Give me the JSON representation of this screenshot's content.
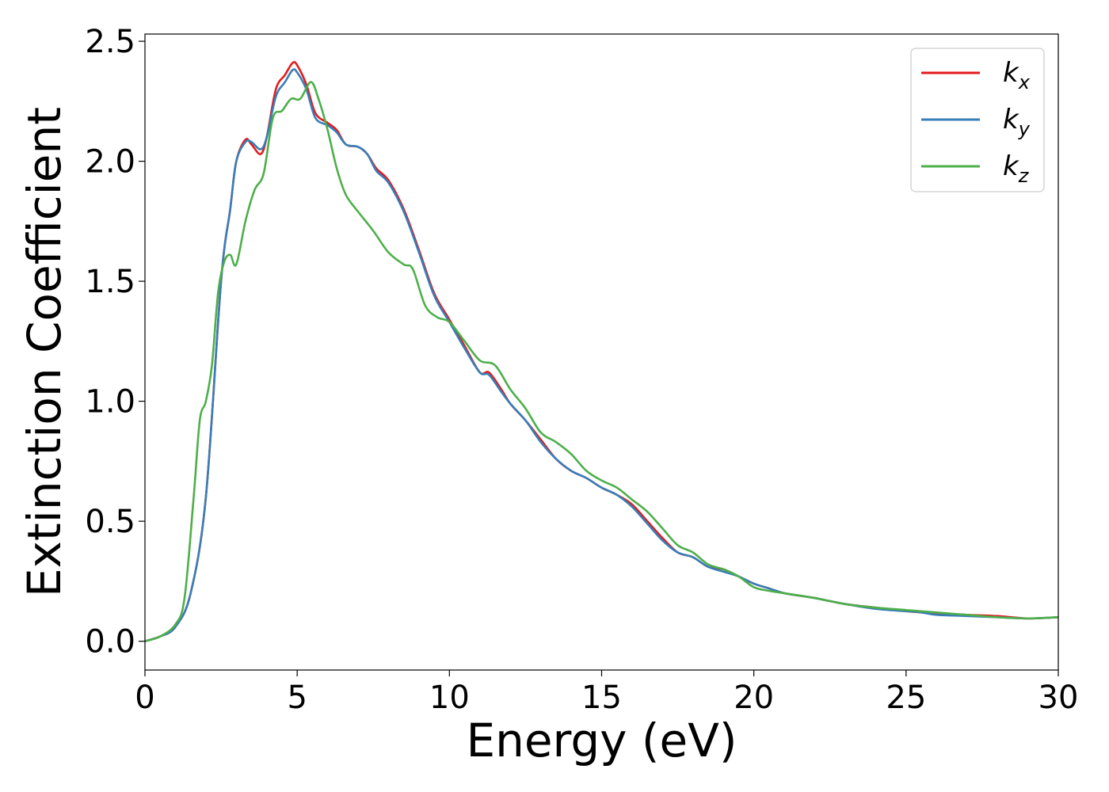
{
  "chart_data": {
    "type": "line",
    "xlabel": "Energy (eV)",
    "ylabel": "Extinction Coefficient",
    "xlim": [
      0,
      30
    ],
    "ylim": [
      -0.12,
      2.53
    ],
    "xticks": [
      0,
      5,
      10,
      15,
      20,
      25,
      30
    ],
    "xtick_labels": [
      "0",
      "5",
      "10",
      "15",
      "20",
      "25",
      "30"
    ],
    "yticks": [
      0.0,
      0.5,
      1.0,
      1.5,
      2.0,
      2.5
    ],
    "ytick_labels": [
      "0.0",
      "0.5",
      "1.0",
      "1.5",
      "2.0",
      "2.5"
    ],
    "grid": false,
    "legend_position": "top-right",
    "series": [
      {
        "name": "k",
        "subscript": "x",
        "color": "#e41a1c",
        "points": [
          [
            0,
            0.0
          ],
          [
            0.5,
            0.02
          ],
          [
            1.0,
            0.06
          ],
          [
            1.5,
            0.2
          ],
          [
            2.0,
            0.6
          ],
          [
            2.5,
            1.5
          ],
          [
            2.8,
            1.8
          ],
          [
            3.0,
            2.0
          ],
          [
            3.3,
            2.09
          ],
          [
            3.5,
            2.07
          ],
          [
            3.8,
            2.03
          ],
          [
            4.0,
            2.1
          ],
          [
            4.3,
            2.3
          ],
          [
            4.6,
            2.36
          ],
          [
            4.85,
            2.41
          ],
          [
            5.0,
            2.4
          ],
          [
            5.3,
            2.32
          ],
          [
            5.6,
            2.2
          ],
          [
            6.0,
            2.16
          ],
          [
            6.3,
            2.13
          ],
          [
            6.6,
            2.07
          ],
          [
            7.0,
            2.06
          ],
          [
            7.3,
            2.03
          ],
          [
            7.6,
            1.97
          ],
          [
            8.0,
            1.92
          ],
          [
            8.5,
            1.8
          ],
          [
            9.0,
            1.63
          ],
          [
            9.5,
            1.45
          ],
          [
            10.0,
            1.34
          ],
          [
            10.5,
            1.23
          ],
          [
            11.0,
            1.12
          ],
          [
            11.3,
            1.12
          ],
          [
            11.7,
            1.05
          ],
          [
            12.0,
            0.99
          ],
          [
            12.5,
            0.92
          ],
          [
            13.0,
            0.84
          ],
          [
            13.5,
            0.76
          ],
          [
            14.0,
            0.71
          ],
          [
            14.5,
            0.68
          ],
          [
            15.0,
            0.64
          ],
          [
            15.5,
            0.61
          ],
          [
            16.0,
            0.57
          ],
          [
            16.5,
            0.5
          ],
          [
            17.0,
            0.43
          ],
          [
            17.5,
            0.37
          ],
          [
            18.0,
            0.35
          ],
          [
            18.5,
            0.31
          ],
          [
            19.0,
            0.3
          ],
          [
            19.5,
            0.27
          ],
          [
            20.0,
            0.24
          ],
          [
            20.5,
            0.22
          ],
          [
            21.0,
            0.2
          ],
          [
            21.5,
            0.19
          ],
          [
            22.0,
            0.18
          ],
          [
            23.0,
            0.155
          ],
          [
            24.0,
            0.14
          ],
          [
            25.0,
            0.125
          ],
          [
            25.5,
            0.12
          ],
          [
            26.0,
            0.115
          ],
          [
            27.0,
            0.11
          ],
          [
            28.0,
            0.105
          ],
          [
            29.0,
            0.095
          ],
          [
            30.0,
            0.1
          ]
        ]
      },
      {
        "name": "k",
        "subscript": "y",
        "color": "#377eb8",
        "points": [
          [
            0,
            0.0
          ],
          [
            0.5,
            0.02
          ],
          [
            1.0,
            0.06
          ],
          [
            1.5,
            0.2
          ],
          [
            2.0,
            0.6
          ],
          [
            2.5,
            1.5
          ],
          [
            2.8,
            1.8
          ],
          [
            3.0,
            2.0
          ],
          [
            3.3,
            2.08
          ],
          [
            3.5,
            2.08
          ],
          [
            3.8,
            2.05
          ],
          [
            4.0,
            2.1
          ],
          [
            4.3,
            2.27
          ],
          [
            4.6,
            2.33
          ],
          [
            4.85,
            2.38
          ],
          [
            5.0,
            2.37
          ],
          [
            5.3,
            2.3
          ],
          [
            5.6,
            2.18
          ],
          [
            6.0,
            2.15
          ],
          [
            6.3,
            2.12
          ],
          [
            6.6,
            2.07
          ],
          [
            7.0,
            2.06
          ],
          [
            7.3,
            2.03
          ],
          [
            7.6,
            1.96
          ],
          [
            8.0,
            1.91
          ],
          [
            8.5,
            1.79
          ],
          [
            9.0,
            1.62
          ],
          [
            9.5,
            1.44
          ],
          [
            10.0,
            1.33
          ],
          [
            10.5,
            1.22
          ],
          [
            11.0,
            1.12
          ],
          [
            11.3,
            1.11
          ],
          [
            11.7,
            1.04
          ],
          [
            12.0,
            0.99
          ],
          [
            12.5,
            0.92
          ],
          [
            13.0,
            0.83
          ],
          [
            13.5,
            0.76
          ],
          [
            14.0,
            0.71
          ],
          [
            14.5,
            0.68
          ],
          [
            15.0,
            0.64
          ],
          [
            15.5,
            0.61
          ],
          [
            16.0,
            0.56
          ],
          [
            16.5,
            0.49
          ],
          [
            17.0,
            0.42
          ],
          [
            17.5,
            0.37
          ],
          [
            18.0,
            0.35
          ],
          [
            18.5,
            0.31
          ],
          [
            19.0,
            0.29
          ],
          [
            19.5,
            0.27
          ],
          [
            20.0,
            0.24
          ],
          [
            20.5,
            0.22
          ],
          [
            21.0,
            0.2
          ],
          [
            21.5,
            0.19
          ],
          [
            22.0,
            0.18
          ],
          [
            23.0,
            0.155
          ],
          [
            24.0,
            0.135
          ],
          [
            25.0,
            0.125
          ],
          [
            25.5,
            0.12
          ],
          [
            26.0,
            0.11
          ],
          [
            27.0,
            0.105
          ],
          [
            28.0,
            0.1
          ],
          [
            29.0,
            0.095
          ],
          [
            30.0,
            0.1
          ]
        ]
      },
      {
        "name": "k",
        "subscript": "z",
        "color": "#4daf4a",
        "points": [
          [
            0,
            0.0
          ],
          [
            0.5,
            0.02
          ],
          [
            1.0,
            0.07
          ],
          [
            1.3,
            0.18
          ],
          [
            1.6,
            0.6
          ],
          [
            1.8,
            0.92
          ],
          [
            2.0,
            1.0
          ],
          [
            2.2,
            1.15
          ],
          [
            2.4,
            1.45
          ],
          [
            2.6,
            1.58
          ],
          [
            2.8,
            1.61
          ],
          [
            3.0,
            1.57
          ],
          [
            3.3,
            1.75
          ],
          [
            3.6,
            1.88
          ],
          [
            3.9,
            1.95
          ],
          [
            4.2,
            2.18
          ],
          [
            4.5,
            2.21
          ],
          [
            4.8,
            2.26
          ],
          [
            5.1,
            2.26
          ],
          [
            5.45,
            2.33
          ],
          [
            5.7,
            2.26
          ],
          [
            6.0,
            2.13
          ],
          [
            6.3,
            1.97
          ],
          [
            6.6,
            1.86
          ],
          [
            7.0,
            1.79
          ],
          [
            7.5,
            1.71
          ],
          [
            8.0,
            1.62
          ],
          [
            8.5,
            1.57
          ],
          [
            8.8,
            1.55
          ],
          [
            9.2,
            1.4
          ],
          [
            9.6,
            1.35
          ],
          [
            10.0,
            1.33
          ],
          [
            10.5,
            1.25
          ],
          [
            11.0,
            1.17
          ],
          [
            11.5,
            1.15
          ],
          [
            12.0,
            1.05
          ],
          [
            12.5,
            0.97
          ],
          [
            13.0,
            0.87
          ],
          [
            13.5,
            0.83
          ],
          [
            14.0,
            0.78
          ],
          [
            14.5,
            0.71
          ],
          [
            15.0,
            0.67
          ],
          [
            15.5,
            0.64
          ],
          [
            16.0,
            0.59
          ],
          [
            16.5,
            0.54
          ],
          [
            17.0,
            0.47
          ],
          [
            17.5,
            0.4
          ],
          [
            18.0,
            0.37
          ],
          [
            18.5,
            0.32
          ],
          [
            19.0,
            0.3
          ],
          [
            19.5,
            0.27
          ],
          [
            20.0,
            0.225
          ],
          [
            20.5,
            0.21
          ],
          [
            21.0,
            0.2
          ],
          [
            21.5,
            0.19
          ],
          [
            22.0,
            0.18
          ],
          [
            23.0,
            0.155
          ],
          [
            24.0,
            0.14
          ],
          [
            25.0,
            0.13
          ],
          [
            25.5,
            0.125
          ],
          [
            26.0,
            0.12
          ],
          [
            27.0,
            0.11
          ],
          [
            28.0,
            0.1
          ],
          [
            29.0,
            0.095
          ],
          [
            30.0,
            0.1
          ]
        ]
      }
    ]
  }
}
